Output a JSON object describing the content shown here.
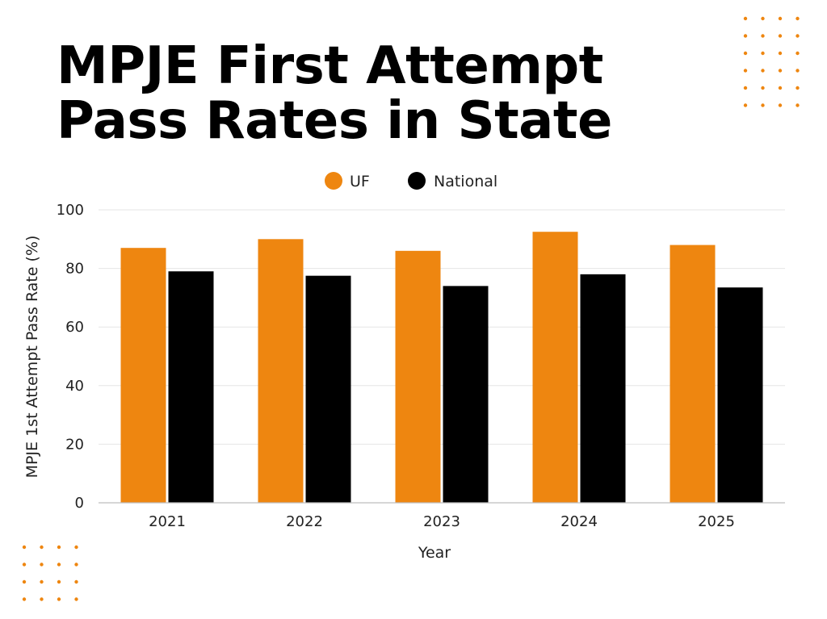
{
  "colors": {
    "accent": "#EE8610",
    "secondary": "#000000",
    "grid": "#E6E6E6",
    "dots": "#EE8610"
  },
  "chart_data": {
    "type": "bar",
    "title": "MPJE First Attempt Pass Rates in State",
    "title_lines": [
      "MPJE First Attempt",
      "Pass Rates in State"
    ],
    "categories": [
      "2021",
      "2022",
      "2023",
      "2024",
      "2025"
    ],
    "series": [
      {
        "name": "UF",
        "values": [
          87,
          90,
          86,
          92.5,
          88
        ],
        "color": "#EE8610"
      },
      {
        "name": "National",
        "values": [
          79,
          77.5,
          74,
          78,
          73.5
        ],
        "color": "#000000"
      }
    ],
    "xlabel": "Year",
    "ylabel": "MPJE 1st Attempt Pass Rate (%)",
    "ylim": [
      0,
      100
    ],
    "yticks": [
      0,
      20,
      40,
      60,
      80,
      100
    ],
    "grid": true,
    "legend_position": "top-center"
  }
}
